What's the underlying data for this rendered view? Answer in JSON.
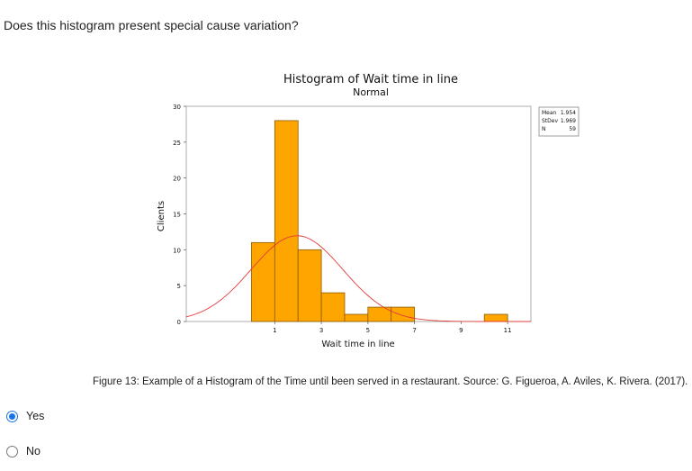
{
  "question": "Does this histogram present special cause variation?",
  "caption": "Figure 13: Example of a Histogram of the Time until been served in a restaurant. Source: G. Figueroa, A. Aviles, K. Rivera. (2017).",
  "options": [
    {
      "label": "Yes",
      "selected": true
    },
    {
      "label": "No",
      "selected": false
    }
  ],
  "chart_data": {
    "type": "bar",
    "title": "Histogram of Wait time in line",
    "subtitle": "Normal",
    "xlabel": "Wait time in line",
    "ylabel": "Clients",
    "xlim": [
      -2.8,
      12
    ],
    "ylim": [
      0,
      30
    ],
    "x_ticks": [
      1,
      3,
      5,
      7,
      9,
      11
    ],
    "y_ticks": [
      0,
      5,
      10,
      15,
      20,
      25,
      30
    ],
    "bins": [
      {
        "start": 0,
        "end": 1,
        "count": 11
      },
      {
        "start": 1,
        "end": 2,
        "count": 28
      },
      {
        "start": 2,
        "end": 3,
        "count": 10
      },
      {
        "start": 3,
        "end": 4,
        "count": 4
      },
      {
        "start": 4,
        "end": 5,
        "count": 1
      },
      {
        "start": 5,
        "end": 6,
        "count": 2
      },
      {
        "start": 6,
        "end": 7,
        "count": 2
      },
      {
        "start": 10,
        "end": 11,
        "count": 1
      }
    ],
    "normal_fit": {
      "mean": 1.954,
      "stdev": 1.969,
      "n": 59,
      "bin_width": 1
    },
    "stats": [
      {
        "label": "Mean",
        "value": "1.954"
      },
      {
        "label": "StDev",
        "value": "1.969"
      },
      {
        "label": "N",
        "value": "59"
      }
    ],
    "colors": {
      "bar": "#FFA500",
      "bar_edge": "#8B5A00",
      "curve": "#e23b3b"
    },
    "grid": false,
    "legend_position": "top-right"
  }
}
